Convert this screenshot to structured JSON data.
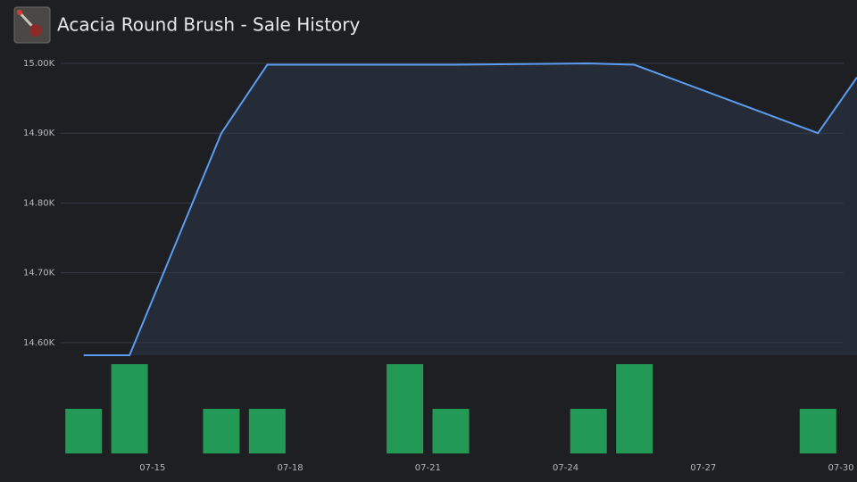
{
  "chart_data": {
    "type": "line",
    "title": "Acacia Round Brush - Sale History",
    "series": [
      {
        "type": "line",
        "color": "#5b9cf0",
        "area_color": "#252c38",
        "x": [
          13.5,
          14.5,
          16.5,
          17.5,
          20.5,
          21.5,
          24.5,
          25.5,
          29.5,
          30.35
        ],
        "values": [
          14582,
          14582,
          14900,
          14998,
          14998,
          14998,
          15000,
          14998,
          14900,
          14980
        ]
      },
      {
        "type": "bar",
        "axis": "y2",
        "color": "#229954",
        "x": [
          13.5,
          14.5,
          16.5,
          17.5,
          20.5,
          21.5,
          24.5,
          25.5,
          29.5
        ],
        "values": [
          1,
          2,
          1,
          1,
          2,
          1,
          1,
          2,
          1
        ]
      }
    ],
    "xlim": [
      13,
      30.35
    ],
    "xticks": [
      {
        "value": 15,
        "label": "07-15"
      },
      {
        "value": 18,
        "label": "07-18"
      },
      {
        "value": 21,
        "label": "07-21"
      },
      {
        "value": 24,
        "label": "07-24"
      },
      {
        "value": 27,
        "label": "07-27"
      },
      {
        "value": 30,
        "label": "07-30"
      }
    ],
    "ylim": [
      14582,
      15014
    ],
    "yticks": [
      {
        "value": 14600,
        "label": "14.60K"
      },
      {
        "value": 14700,
        "label": "14.70K"
      },
      {
        "value": 14800,
        "label": "14.80K"
      },
      {
        "value": 14900,
        "label": "14.90K"
      },
      {
        "value": 15000,
        "label": "15.00K"
      }
    ],
    "y2lim": [
      0,
      2
    ],
    "grid": true
  }
}
